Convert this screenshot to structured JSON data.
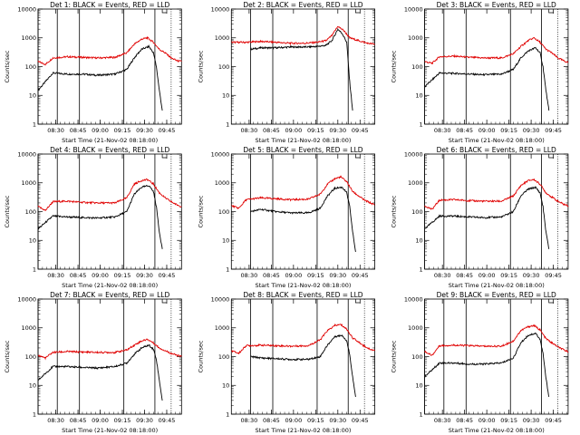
{
  "colors": {
    "events": "#000000",
    "lld": "#e00000",
    "axes": "#000000",
    "background": "#ffffff"
  },
  "chart_data": [
    {
      "type": "line",
      "title": "Det 1: BLACK = Events, RED = LLD",
      "xlabel": "Start Time (21-Nov-02 08:18:00)",
      "ylabel": "Counts/sec",
      "x_tick_labels": [
        "08:30",
        "08:45",
        "09:00",
        "09:15",
        "09:30",
        "09:45"
      ],
      "x_tick_values_min": [
        12,
        27,
        42,
        57,
        72,
        87
      ],
      "xlim_min": [
        0,
        97
      ],
      "y_scale": "log",
      "ylim": [
        1,
        10000
      ],
      "y_tick_labels": [
        "1",
        "10",
        "100",
        "1000",
        "10000"
      ],
      "vlines_min": [
        0,
        13,
        28,
        58,
        79
      ],
      "series": [
        {
          "name": "Events",
          "color": "#000000",
          "x_min": [
            0,
            10,
            20,
            30,
            40,
            52,
            60,
            65,
            70,
            75,
            78,
            80,
            82,
            84
          ],
          "y": [
            15,
            60,
            55,
            55,
            50,
            55,
            80,
            200,
            400,
            500,
            300,
            100,
            15,
            3
          ]
        },
        {
          "name": "LLD",
          "color": "#e00000",
          "x_min": [
            0,
            5,
            10,
            20,
            30,
            40,
            52,
            60,
            65,
            70,
            74,
            78,
            82,
            86,
            90,
            94,
            97
          ],
          "y": [
            150,
            120,
            200,
            220,
            210,
            200,
            210,
            300,
            600,
            900,
            1000,
            700,
            400,
            300,
            200,
            160,
            150
          ]
        }
      ]
    },
    {
      "type": "line",
      "title": "Det 2: BLACK = Events, RED = LLD",
      "xlabel": "Start Time (21-Nov-02 08:18:00)",
      "ylabel": "Counts/sec",
      "x_tick_labels": [
        "08:30",
        "08:45",
        "09:00",
        "09:15",
        "09:30",
        "09:45"
      ],
      "x_tick_values_min": [
        12,
        27,
        42,
        57,
        72,
        87
      ],
      "xlim_min": [
        0,
        97
      ],
      "y_scale": "log",
      "ylim": [
        1,
        10000
      ],
      "y_tick_labels": [
        "1",
        "10",
        "100",
        "1000",
        "10000"
      ],
      "vlines_min": [
        13,
        28,
        58,
        79
      ],
      "series": [
        {
          "name": "Events",
          "color": "#000000",
          "x_min": [
            13,
            20,
            30,
            40,
            50,
            58,
            64,
            68,
            72,
            75,
            78,
            80,
            82
          ],
          "y": [
            400,
            450,
            450,
            480,
            480,
            500,
            550,
            800,
            2000,
            1400,
            700,
            30,
            3
          ]
        },
        {
          "name": "LLD",
          "color": "#e00000",
          "x_min": [
            0,
            10,
            20,
            30,
            40,
            50,
            58,
            64,
            68,
            72,
            76,
            80,
            86,
            92,
            97
          ],
          "y": [
            700,
            700,
            750,
            700,
            650,
            650,
            700,
            800,
            1200,
            2500,
            1800,
            1000,
            800,
            650,
            600
          ]
        }
      ]
    },
    {
      "type": "line",
      "title": "Det 3: BLACK = Events, RED = LLD",
      "xlabel": "Start Time (21-Nov-02 08:18:00)",
      "ylabel": "Counts/sec",
      "x_tick_labels": [
        "08:30",
        "08:45",
        "09:00",
        "09:15",
        "09:30",
        "09:45"
      ],
      "x_tick_values_min": [
        12,
        27,
        42,
        57,
        72,
        87
      ],
      "xlim_min": [
        0,
        97
      ],
      "y_scale": "log",
      "ylim": [
        1,
        10000
      ],
      "y_tick_labels": [
        "1",
        "10",
        "100",
        "1000",
        "10000"
      ],
      "vlines_min": [
        0,
        13,
        28,
        58,
        79
      ],
      "series": [
        {
          "name": "Events",
          "color": "#000000",
          "x_min": [
            0,
            10,
            20,
            30,
            40,
            52,
            60,
            65,
            70,
            75,
            78,
            80,
            82,
            84
          ],
          "y": [
            20,
            60,
            58,
            55,
            52,
            55,
            80,
            200,
            350,
            450,
            300,
            100,
            15,
            3
          ]
        },
        {
          "name": "LLD",
          "color": "#e00000",
          "x_min": [
            0,
            5,
            10,
            20,
            30,
            40,
            52,
            60,
            65,
            70,
            74,
            78,
            82,
            86,
            90,
            94,
            97
          ],
          "y": [
            150,
            130,
            220,
            230,
            210,
            200,
            200,
            280,
            500,
            800,
            1000,
            700,
            400,
            300,
            200,
            160,
            140
          ]
        }
      ]
    },
    {
      "type": "line",
      "title": "Det 4: BLACK = Events, RED = LLD",
      "xlabel": "Start Time (21-Nov-02 08:18:00)",
      "ylabel": "Counts/sec",
      "x_tick_labels": [
        "08:30",
        "08:45",
        "09:00",
        "09:15",
        "09:30",
        "09:45"
      ],
      "x_tick_values_min": [
        12,
        27,
        42,
        57,
        72,
        87
      ],
      "xlim_min": [
        0,
        97
      ],
      "y_scale": "log",
      "ylim": [
        1,
        10000
      ],
      "y_tick_labels": [
        "1",
        "10",
        "100",
        "1000",
        "10000"
      ],
      "vlines_min": [
        0,
        13,
        28,
        58,
        79
      ],
      "series": [
        {
          "name": "Events",
          "color": "#000000",
          "x_min": [
            0,
            10,
            20,
            30,
            40,
            52,
            60,
            65,
            70,
            75,
            78,
            80,
            82,
            84
          ],
          "y": [
            25,
            70,
            65,
            62,
            60,
            65,
            100,
            400,
            700,
            800,
            500,
            150,
            20,
            5
          ]
        },
        {
          "name": "LLD",
          "color": "#e00000",
          "x_min": [
            0,
            5,
            10,
            20,
            30,
            40,
            52,
            60,
            65,
            70,
            74,
            78,
            82,
            86,
            90,
            94,
            97
          ],
          "y": [
            150,
            110,
            220,
            230,
            210,
            200,
            200,
            300,
            900,
            1200,
            1300,
            900,
            450,
            300,
            220,
            170,
            150
          ]
        }
      ]
    },
    {
      "type": "line",
      "title": "Det 5: BLACK = Events, RED = LLD",
      "xlabel": "Start Time (21-Nov-02 08:18:00)",
      "ylabel": "Counts/sec",
      "x_tick_labels": [
        "08:30",
        "08:45",
        "09:00",
        "09:15",
        "09:30",
        "09:45"
      ],
      "x_tick_values_min": [
        12,
        27,
        42,
        57,
        72,
        87
      ],
      "xlim_min": [
        0,
        97
      ],
      "y_scale": "log",
      "ylim": [
        1,
        10000
      ],
      "y_tick_labels": [
        "1",
        "10",
        "100",
        "1000",
        "10000"
      ],
      "vlines_min": [
        13,
        28,
        58,
        79
      ],
      "series": [
        {
          "name": "Events",
          "color": "#000000",
          "x_min": [
            13,
            20,
            30,
            40,
            52,
            60,
            65,
            70,
            75,
            78,
            80,
            82,
            84
          ],
          "y": [
            100,
            120,
            100,
            90,
            90,
            130,
            350,
            650,
            700,
            450,
            150,
            20,
            4
          ]
        },
        {
          "name": "LLD",
          "color": "#e00000",
          "x_min": [
            0,
            5,
            10,
            20,
            30,
            40,
            52,
            60,
            65,
            70,
            74,
            78,
            82,
            86,
            90,
            94,
            97
          ],
          "y": [
            160,
            130,
            260,
            300,
            280,
            260,
            270,
            400,
            900,
            1400,
            1600,
            1100,
            500,
            350,
            250,
            200,
            170
          ]
        }
      ]
    },
    {
      "type": "line",
      "title": "Det 6: BLACK = Events, RED = LLD",
      "xlabel": "Start Time (21-Nov-02 08:18:00)",
      "ylabel": "Counts/sec",
      "x_tick_labels": [
        "08:30",
        "08:45",
        "09:00",
        "09:15",
        "09:30",
        "09:45"
      ],
      "x_tick_values_min": [
        12,
        27,
        42,
        57,
        72,
        87
      ],
      "xlim_min": [
        0,
        97
      ],
      "y_scale": "log",
      "ylim": [
        1,
        10000
      ],
      "y_tick_labels": [
        "1",
        "10",
        "100",
        "1000",
        "10000"
      ],
      "vlines_min": [
        0,
        13,
        28,
        58,
        79
      ],
      "series": [
        {
          "name": "Events",
          "color": "#000000",
          "x_min": [
            0,
            10,
            20,
            30,
            40,
            52,
            60,
            65,
            70,
            75,
            78,
            80,
            82,
            84
          ],
          "y": [
            25,
            70,
            70,
            65,
            62,
            65,
            100,
            350,
            600,
            700,
            450,
            150,
            20,
            5
          ]
        },
        {
          "name": "LLD",
          "color": "#e00000",
          "x_min": [
            0,
            5,
            10,
            20,
            30,
            40,
            52,
            60,
            65,
            70,
            74,
            78,
            82,
            86,
            90,
            94,
            97
          ],
          "y": [
            160,
            120,
            250,
            260,
            240,
            230,
            230,
            350,
            800,
            1200,
            1300,
            900,
            450,
            320,
            230,
            180,
            160
          ]
        }
      ]
    },
    {
      "type": "line",
      "title": "Det 7: BLACK = Events, RED = LLD",
      "xlabel": "Start Time (21-Nov-02 08:18:00)",
      "ylabel": "Counts/sec",
      "x_tick_labels": [
        "08:30",
        "08:45",
        "09:00",
        "09:15",
        "09:30",
        "09:45"
      ],
      "x_tick_values_min": [
        12,
        27,
        42,
        57,
        72,
        87
      ],
      "xlim_min": [
        0,
        97
      ],
      "y_scale": "log",
      "ylim": [
        1,
        10000
      ],
      "y_tick_labels": [
        "1",
        "10",
        "100",
        "1000",
        "10000"
      ],
      "vlines_min": [
        0,
        13,
        28,
        58,
        79
      ],
      "series": [
        {
          "name": "Events",
          "color": "#000000",
          "x_min": [
            0,
            10,
            20,
            30,
            40,
            52,
            60,
            65,
            70,
            75,
            78,
            80,
            82,
            84
          ],
          "y": [
            15,
            45,
            45,
            42,
            40,
            45,
            60,
            120,
            200,
            250,
            180,
            80,
            15,
            3
          ]
        },
        {
          "name": "LLD",
          "color": "#e00000",
          "x_min": [
            0,
            5,
            10,
            20,
            30,
            40,
            52,
            60,
            65,
            70,
            74,
            78,
            82,
            86,
            90,
            94,
            97
          ],
          "y": [
            110,
            90,
            140,
            150,
            145,
            140,
            140,
            170,
            250,
            350,
            400,
            300,
            200,
            160,
            130,
            110,
            100
          ]
        }
      ]
    },
    {
      "type": "line",
      "title": "Det 8: BLACK = Events, RED = LLD",
      "xlabel": "Start Time (21-Nov-02 08:18:00)",
      "ylabel": "Counts/sec",
      "x_tick_labels": [
        "08:30",
        "08:45",
        "09:00",
        "09:15",
        "09:30",
        "09:45"
      ],
      "x_tick_values_min": [
        12,
        27,
        42,
        57,
        72,
        87
      ],
      "xlim_min": [
        0,
        97
      ],
      "y_scale": "log",
      "ylim": [
        1,
        10000
      ],
      "y_tick_labels": [
        "1",
        "10",
        "100",
        "1000",
        "10000"
      ],
      "vlines_min": [
        13,
        28,
        58,
        79
      ],
      "series": [
        {
          "name": "Events",
          "color": "#000000",
          "x_min": [
            13,
            20,
            30,
            40,
            52,
            60,
            65,
            70,
            75,
            78,
            80,
            82,
            84
          ],
          "y": [
            100,
            90,
            85,
            80,
            80,
            100,
            250,
            500,
            550,
            350,
            120,
            20,
            4
          ]
        },
        {
          "name": "LLD",
          "color": "#e00000",
          "x_min": [
            0,
            5,
            10,
            20,
            30,
            40,
            52,
            60,
            65,
            70,
            74,
            78,
            82,
            86,
            90,
            94,
            97
          ],
          "y": [
            160,
            130,
            240,
            250,
            240,
            230,
            240,
            380,
            800,
            1200,
            1300,
            900,
            450,
            320,
            230,
            180,
            160
          ]
        }
      ]
    },
    {
      "type": "line",
      "title": "Det 9: BLACK = Events, RED = LLD",
      "xlabel": "Start Time (21-Nov-02 08:18:00)",
      "ylabel": "Counts/sec",
      "x_tick_labels": [
        "08:30",
        "08:45",
        "09:00",
        "09:15",
        "09:30",
        "09:45"
      ],
      "x_tick_values_min": [
        12,
        27,
        42,
        57,
        72,
        87
      ],
      "xlim_min": [
        0,
        97
      ],
      "y_scale": "log",
      "ylim": [
        1,
        10000
      ],
      "y_tick_labels": [
        "1",
        "10",
        "100",
        "1000",
        "10000"
      ],
      "vlines_min": [
        0,
        13,
        28,
        58,
        79
      ],
      "series": [
        {
          "name": "Events",
          "color": "#000000",
          "x_min": [
            0,
            10,
            20,
            30,
            40,
            52,
            60,
            65,
            70,
            75,
            78,
            80,
            82,
            84
          ],
          "y": [
            20,
            60,
            60,
            55,
            55,
            60,
            90,
            300,
            550,
            650,
            400,
            130,
            18,
            4
          ]
        },
        {
          "name": "LLD",
          "color": "#e00000",
          "x_min": [
            0,
            5,
            10,
            20,
            30,
            40,
            52,
            60,
            65,
            70,
            74,
            78,
            82,
            86,
            90,
            94,
            97
          ],
          "y": [
            150,
            110,
            240,
            250,
            240,
            230,
            230,
            350,
            800,
            1100,
            1200,
            850,
            420,
            300,
            220,
            170,
            150
          ]
        }
      ]
    }
  ]
}
